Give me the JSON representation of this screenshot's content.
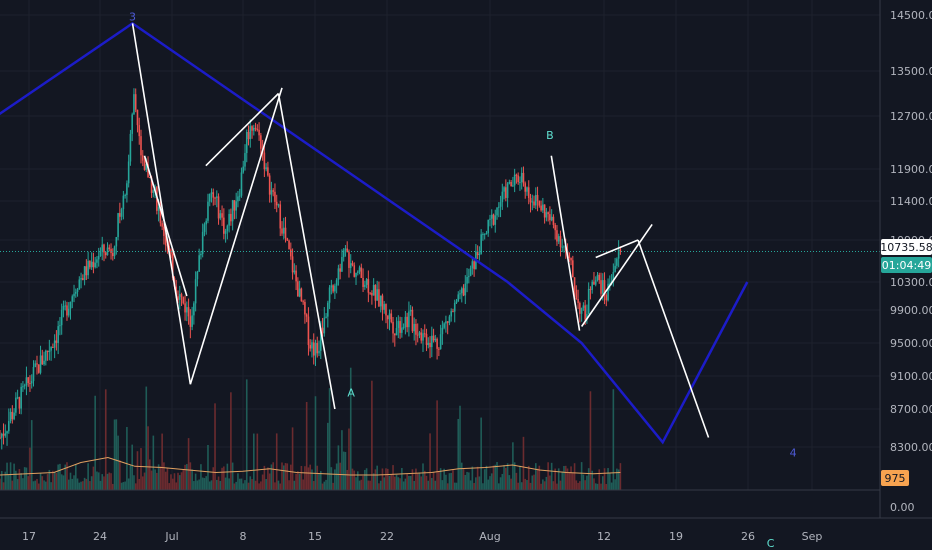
{
  "colors": {
    "background": "#131722",
    "grid": "#1e222d",
    "up": "#26a69a",
    "down": "#ef5350",
    "vol_up": "#1f5c57",
    "vol_down": "#6b2b2f",
    "volume_ma": "#e0a060",
    "elliott": "#1c1cc8",
    "pattern": "#ffffff",
    "axis_text": "#b2b5be",
    "blue_label": "#4e5bd8",
    "teal_label": "#5fe0d0",
    "price_tag": "#ffffff",
    "time_tag": "#26a69a",
    "volume_tag": "#f7a350"
  },
  "chart_data": {
    "type": "candlestick",
    "title": "",
    "y_axis": {
      "ticks": [
        "14500.00",
        "13500.00",
        "12700.00",
        "11900.00",
        "11400.00",
        "10900.00",
        "10300.00",
        "9900.00",
        "9500.00",
        "9100.00",
        "8700.00",
        "8300.00"
      ],
      "volume_tick": "0.00"
    },
    "x_axis": {
      "ticks": [
        "17",
        "24",
        "Jul",
        "8",
        "15",
        "22",
        "Aug",
        "12",
        "19",
        "26",
        "Sep"
      ]
    },
    "last_price": "10735.58",
    "countdown": "01:04:49",
    "last_volume": "975",
    "price_path": [
      [
        0,
        8400
      ],
      [
        4,
        9000
      ],
      [
        8,
        9600
      ],
      [
        11,
        10300
      ],
      [
        14,
        10700
      ],
      [
        16,
        10800
      ],
      [
        18,
        11700
      ],
      [
        19,
        13100
      ],
      [
        20,
        12000
      ],
      [
        21,
        11800
      ],
      [
        22,
        11500
      ],
      [
        24,
        10700
      ],
      [
        25,
        10200
      ],
      [
        27,
        9800
      ],
      [
        28,
        10400
      ],
      [
        29,
        11200
      ],
      [
        30,
        11500
      ],
      [
        31,
        11300
      ],
      [
        32,
        11000
      ],
      [
        33,
        11300
      ],
      [
        34,
        11600
      ],
      [
        35,
        12400
      ],
      [
        36,
        12600
      ],
      [
        37,
        12300
      ],
      [
        38,
        11700
      ],
      [
        40,
        11100
      ],
      [
        42,
        10300
      ],
      [
        44,
        9500
      ],
      [
        45,
        9400
      ],
      [
        46,
        9800
      ],
      [
        47,
        10200
      ],
      [
        48,
        10500
      ],
      [
        49,
        10700
      ],
      [
        50,
        10500
      ],
      [
        52,
        10300
      ],
      [
        54,
        10000
      ],
      [
        56,
        9700
      ],
      [
        58,
        9800
      ],
      [
        60,
        9600
      ],
      [
        62,
        9500
      ],
      [
        63,
        9700
      ],
      [
        65,
        10000
      ],
      [
        67,
        10500
      ],
      [
        68,
        10800
      ],
      [
        70,
        11200
      ],
      [
        72,
        11600
      ],
      [
        74,
        11800
      ],
      [
        75,
        11500
      ],
      [
        77,
        11300
      ],
      [
        79,
        11000
      ],
      [
        80,
        10800
      ],
      [
        81,
        10500
      ],
      [
        82,
        10000
      ],
      [
        83,
        9800
      ],
      [
        84,
        10400
      ],
      [
        85,
        10300
      ],
      [
        86,
        10100
      ],
      [
        87,
        10500
      ],
      [
        88,
        10750
      ]
    ],
    "elliott_wave": {
      "points": [
        {
          "label": "",
          "day": -0.5,
          "price": 12700
        },
        {
          "label": "3",
          "day": 18.8,
          "price": 14350
        },
        {
          "label": "",
          "day": 72,
          "price": 10300
        },
        {
          "label": "",
          "day": 82.5,
          "price": 9500
        },
        {
          "label": "4",
          "day": 94,
          "price": 8350
        },
        {
          "label": "",
          "day": 106,
          "price": 10300
        }
      ]
    },
    "pattern_lines": [
      [
        [
          18.8,
          14350
        ],
        [
          27,
          9000
        ]
      ],
      [
        [
          20.5,
          12100
        ],
        [
          26.5,
          10100
        ]
      ],
      [
        [
          27,
          9000
        ],
        [
          40,
          13200
        ]
      ],
      [
        [
          29.2,
          11950
        ],
        [
          39.5,
          13100
        ]
      ],
      [
        [
          39.5,
          13100
        ],
        [
          47.5,
          8700
        ]
      ],
      [
        [
          78.2,
          12100
        ],
        [
          82.2,
          9650
        ]
      ],
      [
        [
          82.5,
          9700
        ],
        [
          92.5,
          11100
        ]
      ],
      [
        [
          84.5,
          10650
        ],
        [
          90.5,
          10900
        ]
      ],
      [
        [
          90.5,
          10900
        ],
        [
          100.5,
          8400
        ]
      ]
    ],
    "wave_labels": [
      {
        "text": "3",
        "day": 18.8,
        "price": 14400,
        "color": "blue_label"
      },
      {
        "text": "A",
        "day": 49.8,
        "price": 8850,
        "color": "teal_label"
      },
      {
        "text": "B",
        "day": 78.0,
        "price": 12350,
        "color": "teal_label"
      },
      {
        "text": "4",
        "day": 112.5,
        "price": 8200,
        "color": "blue_label"
      },
      {
        "text": "C",
        "day": 109.3,
        "price": 7250,
        "color": "teal_label"
      }
    ],
    "volume_ma_levels": [
      0.2,
      0.25,
      0.3,
      0.7,
      0.9,
      0.55,
      0.5,
      0.4,
      0.3,
      0.35,
      0.45,
      0.3,
      0.25,
      0.2,
      0.2,
      0.25,
      0.3,
      0.45,
      0.5,
      0.6,
      0.4,
      0.3,
      0.25,
      0.3
    ]
  }
}
